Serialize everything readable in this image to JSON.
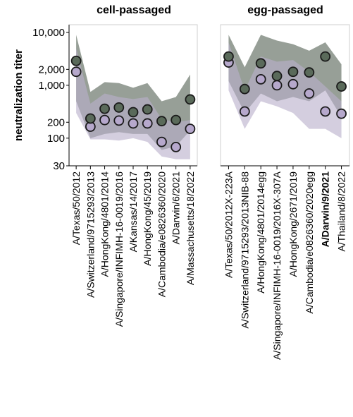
{
  "chart_data": [
    {
      "type": "line",
      "title": "cell-passaged",
      "ylabel": "neutralization titer",
      "yscale": "log",
      "ylim": [
        30,
        14000
      ],
      "yticks": [
        30,
        100,
        200,
        1000,
        2000,
        10000
      ],
      "ytick_labels": [
        "30",
        "100",
        "200",
        "1,000",
        "2,000",
        "10,000"
      ],
      "categories": [
        "A/Texas/50/2012",
        "A/Switzerland/9715293/2013",
        "A/HongKong/4801/2014",
        "A/Singapore/INFIMH-16-0019/2016",
        "A/Kansas/14/2017",
        "A/HongKong/45/2019",
        "A/Cambodia/e0826360/2020",
        "A/Darwin/6/2021",
        "A/Massachusetts/18/2022"
      ],
      "bold_categories": [],
      "series": [
        {
          "color": "#5a6a5a",
          "values": [
            2900,
            235,
            360,
            380,
            310,
            350,
            210,
            220,
            540
          ],
          "band_low": [
            500,
            100,
            120,
            130,
            120,
            120,
            60,
            70,
            140
          ],
          "band_high": [
            9000,
            750,
            1150,
            1100,
            900,
            1100,
            500,
            600,
            1600
          ]
        },
        {
          "color": "#b6a8cc",
          "values": [
            1800,
            165,
            220,
            215,
            190,
            190,
            85,
            68,
            150
          ],
          "band_low": [
            300,
            95,
            95,
            90,
            100,
            85,
            45,
            40,
            40
          ],
          "band_high": [
            5000,
            450,
            700,
            600,
            550,
            600,
            230,
            200,
            220
          ]
        }
      ]
    },
    {
      "type": "line",
      "title": "egg-passaged",
      "yscale": "log",
      "ylim": [
        30,
        14000
      ],
      "categories": [
        "A/Texas/50/2012X-223A",
        "A/Switzerland/9715293/2013NIB-88",
        "A/HongKong/4801/2014egg",
        "A/Singapore/INFIMH-16-0019/2016X-307A",
        "A/HongKong/2671/2019",
        "A/Cambodia/e0826360/2020egg",
        "A/Darwin/9/2021",
        "A/Thailand/8/2022"
      ],
      "bold_categories": [
        "A/Darwin/9/2021"
      ],
      "series": [
        {
          "color": "#5a6a5a",
          "values": [
            3500,
            850,
            2600,
            1500,
            1800,
            1750,
            3500,
            950
          ],
          "band_low": [
            1200,
            300,
            700,
            500,
            600,
            500,
            800,
            250
          ],
          "band_high": [
            9000,
            2200,
            9000,
            7000,
            6000,
            4500,
            6500,
            2500
          ]
        },
        {
          "color": "#b6a8cc",
          "values": [
            2700,
            320,
            1300,
            1000,
            1050,
            700,
            320,
            290
          ],
          "band_low": [
            800,
            150,
            500,
            400,
            300,
            150,
            150,
            100
          ],
          "band_high": [
            6500,
            800,
            3500,
            2800,
            3000,
            1800,
            950,
            500
          ]
        }
      ]
    }
  ]
}
